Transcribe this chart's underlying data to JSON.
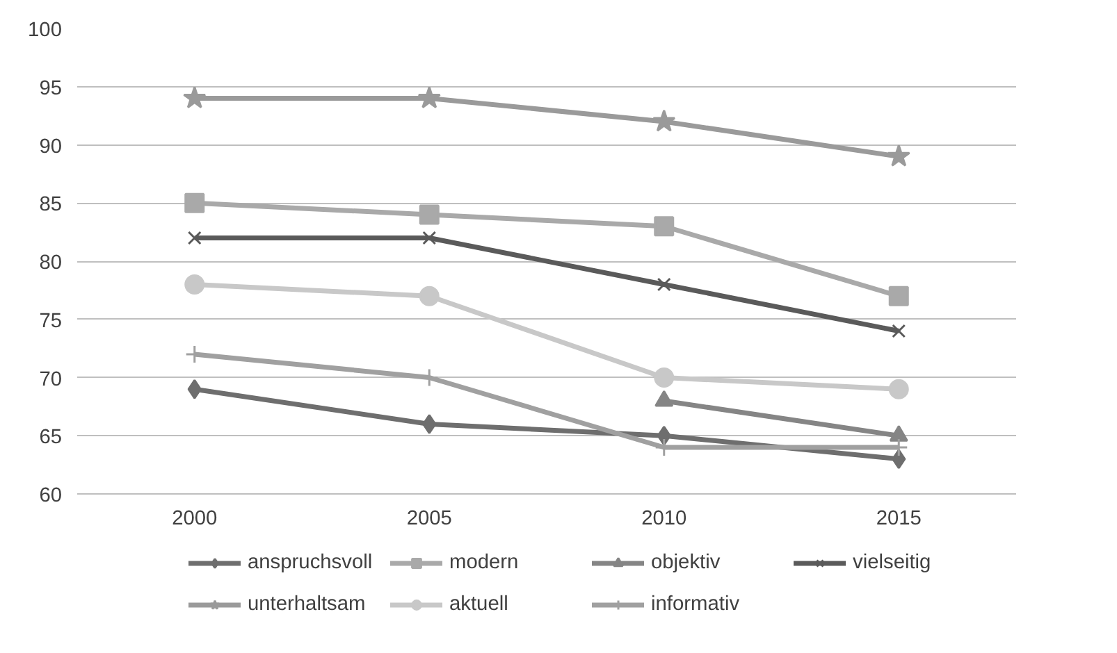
{
  "chart_data": {
    "type": "line",
    "categories": [
      "2000",
      "2005",
      "2010",
      "2015"
    ],
    "ylim": [
      60,
      100
    ],
    "yticks": [
      60,
      65,
      70,
      75,
      80,
      85,
      90,
      95,
      100
    ],
    "grid": "y",
    "legend": "bottom",
    "series": [
      {
        "name": "anspruchsvoll",
        "color": "#6e6e6e",
        "marker": "diamond",
        "values": [
          69,
          66,
          65,
          63
        ]
      },
      {
        "name": "modern",
        "color": "#a9a9a9",
        "marker": "square",
        "values": [
          85,
          84,
          83,
          77
        ]
      },
      {
        "name": "objektiv",
        "color": "#858585",
        "marker": "triangle",
        "values": [
          null,
          null,
          68,
          65
        ]
      },
      {
        "name": "vielseitig",
        "color": "#5a5a5a",
        "marker": "x",
        "values": [
          82,
          82,
          78,
          74
        ]
      },
      {
        "name": "unterhaltsam",
        "color": "#9a9a9a",
        "marker": "star",
        "values": [
          94,
          94,
          92,
          89
        ]
      },
      {
        "name": "aktuell",
        "color": "#c8c8c8",
        "marker": "circle",
        "values": [
          78,
          77,
          70,
          69
        ]
      },
      {
        "name": "informativ",
        "color": "#a0a0a0",
        "marker": "cross",
        "values": [
          72,
          70,
          64,
          64
        ]
      }
    ]
  }
}
